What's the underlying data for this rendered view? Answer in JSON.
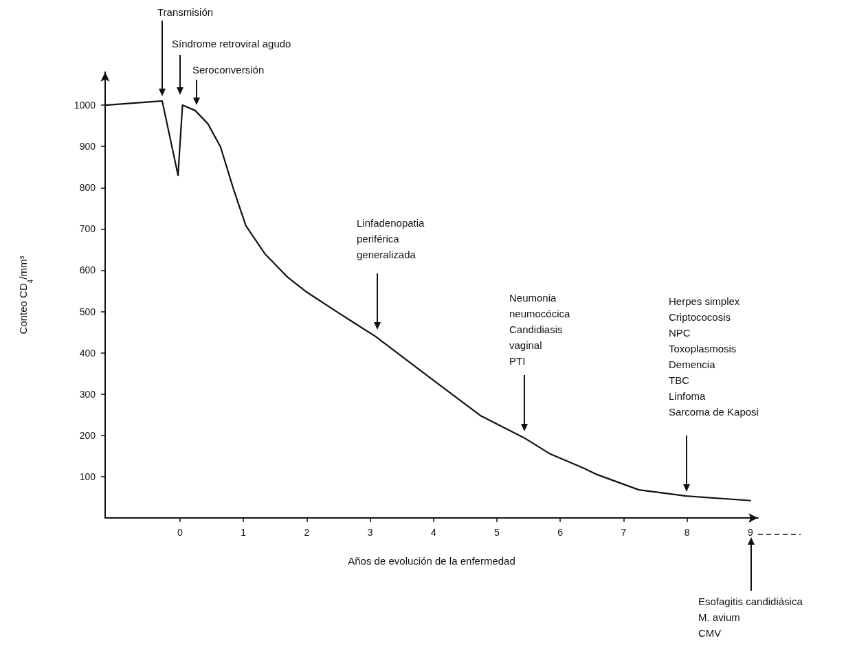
{
  "chart_data": {
    "type": "line",
    "xlabel": "Años de evolución de la enfermedad",
    "ylabel": "Conteo CD$_{4}$/mm³",
    "x": [
      -1.18,
      -0.3,
      -0.28,
      -0.03,
      0.04,
      0.24,
      0.44,
      0.64,
      0.84,
      1.04,
      1.34,
      1.7,
      2.0,
      2.5,
      3.09,
      4.02,
      4.75,
      5.43,
      5.84,
      6.38,
      6.58,
      7.24,
      7.99,
      9.0
    ],
    "series": [
      {
        "color": "#111111",
        "values": [
          1000,
          1010,
          1010,
          830,
          1000,
          987,
          955,
          899,
          799,
          708,
          640,
          583,
          547,
          497,
          439,
          331,
          247,
          194,
          155,
          120,
          105,
          68,
          53,
          42
        ]
      }
    ],
    "xlim": [
      -1.18,
      9.12
    ],
    "ylim": [
      0,
      1080
    ],
    "xticks": [
      0,
      1,
      2,
      3,
      4,
      5,
      6,
      7,
      8,
      9
    ],
    "yticks": [
      100,
      200,
      300,
      400,
      500,
      600,
      700,
      800,
      900,
      1000
    ],
    "grid": false,
    "marker": "none",
    "line_style": "solid",
    "annotations": [
      "Transmisión",
      "Síndrome retroviral agudo",
      "Seroconversión",
      "Linfadenopatia\nperiférica\ngeneralizada",
      "Neumonia\nneumocócica\nCandidiasis\nvaginal\nPTI",
      "Herpes simplex\nCriptococosis\nNPC\nToxoplasmosis\nDemencia\nTBC\nLinfoma\nSarcoma de Kaposi",
      "Esofagitis candidiásica\nM. avium\nCMV"
    ]
  }
}
